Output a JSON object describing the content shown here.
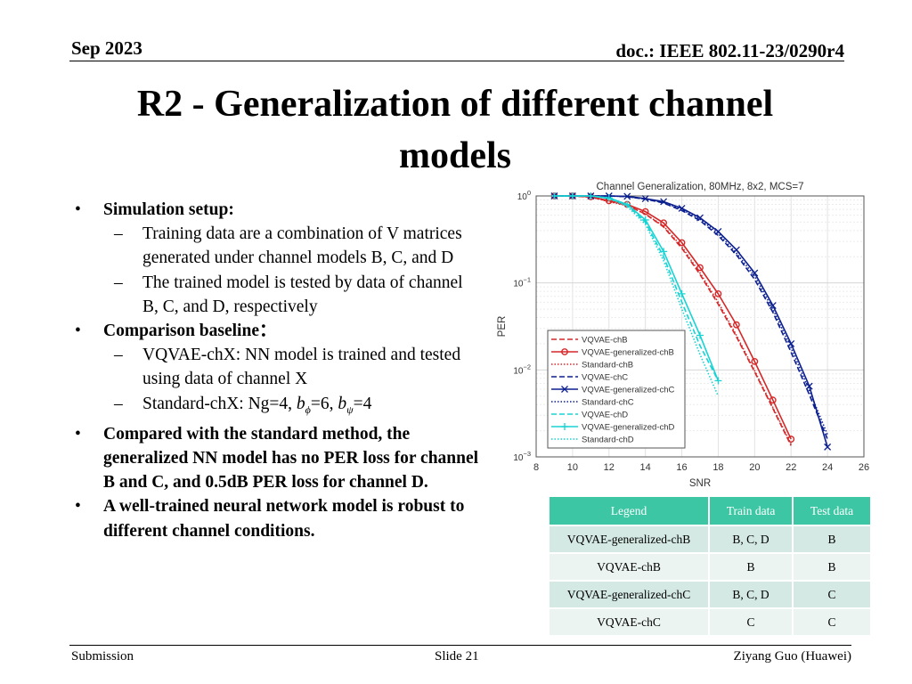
{
  "header": {
    "date": "Sep 2023",
    "doc": "doc.: IEEE 802.11-23/0290r4"
  },
  "slide_title": "R2 - Generalization of different channel models",
  "bullets": {
    "b1": "Simulation setup:",
    "b1_1": "Training data are a combination of V matrices generated under channel models B, C, and D",
    "b1_2": "The trained model is tested by data of channel B, C, and D, respectively",
    "b2": "Comparison baseline：",
    "b2_1": "VQVAE-chX: NN model is trained and tested using data of channel X",
    "b2_2_text": "Standard-chX: Ng=4,",
    "b2_2_bphi": "=6,",
    "b2_2_bpsi": "=4",
    "b3": "Compared with the standard method, the generalized NN model has no PER loss for channel B and C, and 0.5dB PER loss for channel D.",
    "b4": "A well-trained neural network model is robust to different channel conditions."
  },
  "chart_data": {
    "type": "line",
    "title": "Channel Generalization, 80MHz, 8x2, MCS=7",
    "xlabel": "SNR",
    "ylabel": "PER",
    "x_ticks": [
      "8",
      "10",
      "12",
      "14",
      "16",
      "18",
      "20",
      "22",
      "24",
      "26"
    ],
    "y_ticks": [
      "10^0",
      "10^-1",
      "10^-2",
      "10^-3"
    ],
    "xlim": [
      8,
      26
    ],
    "ylim": [
      0.001,
      1
    ],
    "yscale": "log",
    "grid": true,
    "legend_position": "lower-left",
    "series": [
      {
        "name": "VQVAE-chB",
        "color": "#d62728",
        "style": "dashed",
        "marker": "none",
        "x": [
          9,
          10,
          11,
          12,
          13,
          14,
          15,
          16,
          17,
          18,
          19,
          20,
          21,
          22
        ],
        "y": [
          1,
          1,
          0.97,
          0.87,
          0.78,
          0.62,
          0.44,
          0.25,
          0.125,
          0.057,
          0.024,
          0.0095,
          0.0036,
          0.00135
        ]
      },
      {
        "name": "VQVAE-generalized-chB",
        "color": "#d62728",
        "style": "solid",
        "marker": "circle",
        "x": [
          9,
          10,
          11,
          12,
          13,
          14,
          15,
          16,
          17,
          18,
          19,
          20,
          21,
          22
        ],
        "y": [
          1,
          1,
          0.98,
          0.88,
          0.8,
          0.66,
          0.49,
          0.29,
          0.15,
          0.075,
          0.033,
          0.0125,
          0.0045,
          0.0016
        ]
      },
      {
        "name": "Standard-chB",
        "color": "#d62728",
        "style": "dotted",
        "marker": "none",
        "x": [
          9,
          10,
          11,
          12,
          13,
          14,
          15,
          16,
          17,
          18,
          19,
          20,
          21,
          22
        ],
        "y": [
          1,
          1,
          0.97,
          0.86,
          0.77,
          0.62,
          0.45,
          0.26,
          0.13,
          0.06,
          0.025,
          0.0098,
          0.0037,
          0.0014
        ]
      },
      {
        "name": "VQVAE-chC",
        "color": "#0b1f8f",
        "style": "dashed",
        "marker": "none",
        "x": [
          9,
          10,
          11,
          12,
          13,
          14,
          15,
          16,
          17,
          18,
          19,
          20,
          21,
          22,
          23,
          24
        ],
        "y": [
          1,
          1,
          1,
          1,
          0.98,
          0.92,
          0.83,
          0.68,
          0.52,
          0.35,
          0.21,
          0.11,
          0.046,
          0.016,
          0.0052,
          0.0016
        ]
      },
      {
        "name": "VQVAE-generalized-chC",
        "color": "#0b1f8f",
        "style": "solid",
        "marker": "x",
        "x": [
          9,
          10,
          11,
          12,
          13,
          14,
          15,
          16,
          17,
          18,
          19,
          20,
          21,
          22,
          23,
          24
        ],
        "y": [
          1,
          1,
          1,
          1,
          0.99,
          0.93,
          0.86,
          0.72,
          0.56,
          0.39,
          0.24,
          0.13,
          0.055,
          0.02,
          0.0065,
          0.0013
        ]
      },
      {
        "name": "Standard-chC",
        "color": "#0b1f8f",
        "style": "dotted",
        "marker": "none",
        "x": [
          9,
          10,
          11,
          12,
          13,
          14,
          15,
          16,
          17,
          18,
          19,
          20,
          21,
          22,
          23,
          24
        ],
        "y": [
          1,
          1,
          1,
          1,
          0.98,
          0.92,
          0.84,
          0.7,
          0.54,
          0.37,
          0.22,
          0.12,
          0.05,
          0.018,
          0.0058,
          0.0018
        ]
      },
      {
        "name": "VQVAE-chD",
        "color": "#17d3d3",
        "style": "dashed",
        "marker": "none",
        "x": [
          9,
          10,
          11,
          12,
          13,
          14,
          15,
          16,
          17,
          18
        ],
        "y": [
          1,
          1,
          1,
          0.94,
          0.78,
          0.5,
          0.2,
          0.06,
          0.019,
          0.0075
        ]
      },
      {
        "name": "VQVAE-generalized-chD",
        "color": "#17d3d3",
        "style": "solid",
        "marker": "plus",
        "x": [
          9,
          10,
          11,
          12,
          13,
          14,
          15,
          16,
          17,
          18
        ],
        "y": [
          1,
          1,
          1,
          0.95,
          0.8,
          0.53,
          0.23,
          0.075,
          0.025,
          0.0075
        ]
      },
      {
        "name": "Standard-chD",
        "color": "#17d3d3",
        "style": "dotted",
        "marker": "none",
        "x": [
          9,
          10,
          11,
          12,
          13,
          14,
          15,
          16,
          17,
          18
        ],
        "y": [
          1,
          1,
          1,
          0.93,
          0.76,
          0.47,
          0.18,
          0.05,
          0.015,
          0.005
        ]
      }
    ]
  },
  "table": {
    "headers": [
      "Legend",
      "Train data",
      "Test data"
    ],
    "rows": [
      [
        "VQVAE-generalized-chB",
        "B, C, D",
        "B"
      ],
      [
        "VQVAE-chB",
        "B",
        "B"
      ],
      [
        "VQVAE-generalized-chC",
        "B, C, D",
        "C"
      ],
      [
        "VQVAE-chC",
        "C",
        "C"
      ]
    ]
  },
  "footer": {
    "left": "Submission",
    "center": "Slide 21",
    "right": "Ziyang Guo (Huawei)"
  }
}
